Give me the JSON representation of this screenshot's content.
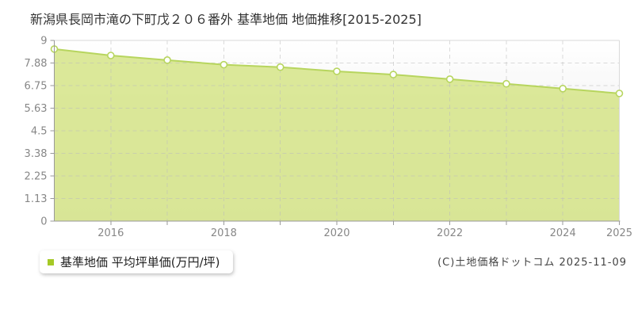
{
  "page": {
    "title": "新潟県長岡市滝の下町戊２０６番外 基準地価 地価推移[2015-2025]"
  },
  "legend": {
    "label": "基準地価 平均坪単価(万円/坪)"
  },
  "footer": {
    "copyright": "(C)土地価格ドットコム 2025-11-09"
  },
  "colors": {
    "accent_line": "#b7d55e",
    "accent_fill": "rgba(214,229,139,0.88)",
    "legend_marker": "#a5c926",
    "grid": "#bbbbbb",
    "axis": "#999999",
    "border": "#dadada",
    "tick_label": "#878787",
    "plot_bg_top": "#ffffff",
    "plot_bg_bottom": "#e6e6e6"
  },
  "chart_data": {
    "type": "area",
    "title": "新潟県長岡市滝の下町戊２０６番外 基準地価 地価推移[2015-2025]",
    "x": [
      2015,
      2016,
      2017,
      2018,
      2019,
      2020,
      2021,
      2022,
      2023,
      2024,
      2025
    ],
    "series": [
      {
        "name": "基準地価 平均坪単価(万円/坪)",
        "values": [
          8.57,
          8.25,
          8.02,
          7.79,
          7.67,
          7.46,
          7.3,
          7.07,
          6.84,
          6.6,
          6.36
        ]
      }
    ],
    "xlabel": "",
    "ylabel": "平均坪単価(万円/坪)",
    "xlim": [
      2015,
      2025
    ],
    "ylim": [
      0,
      9
    ],
    "yticks": [
      0,
      1.13,
      2.25,
      3.38,
      4.5,
      5.63,
      6.75,
      7.88,
      9
    ],
    "ytick_labels": [
      "0",
      "1.13",
      "2.25",
      "3.38",
      "4.5",
      "5.63",
      "6.75",
      "7.88",
      "9"
    ],
    "xticks_labeled": [
      2016,
      2018,
      2020,
      2022,
      2024,
      2025
    ],
    "grid": "dashed",
    "legend_position": "bottom-left",
    "marker": "open-circle"
  }
}
